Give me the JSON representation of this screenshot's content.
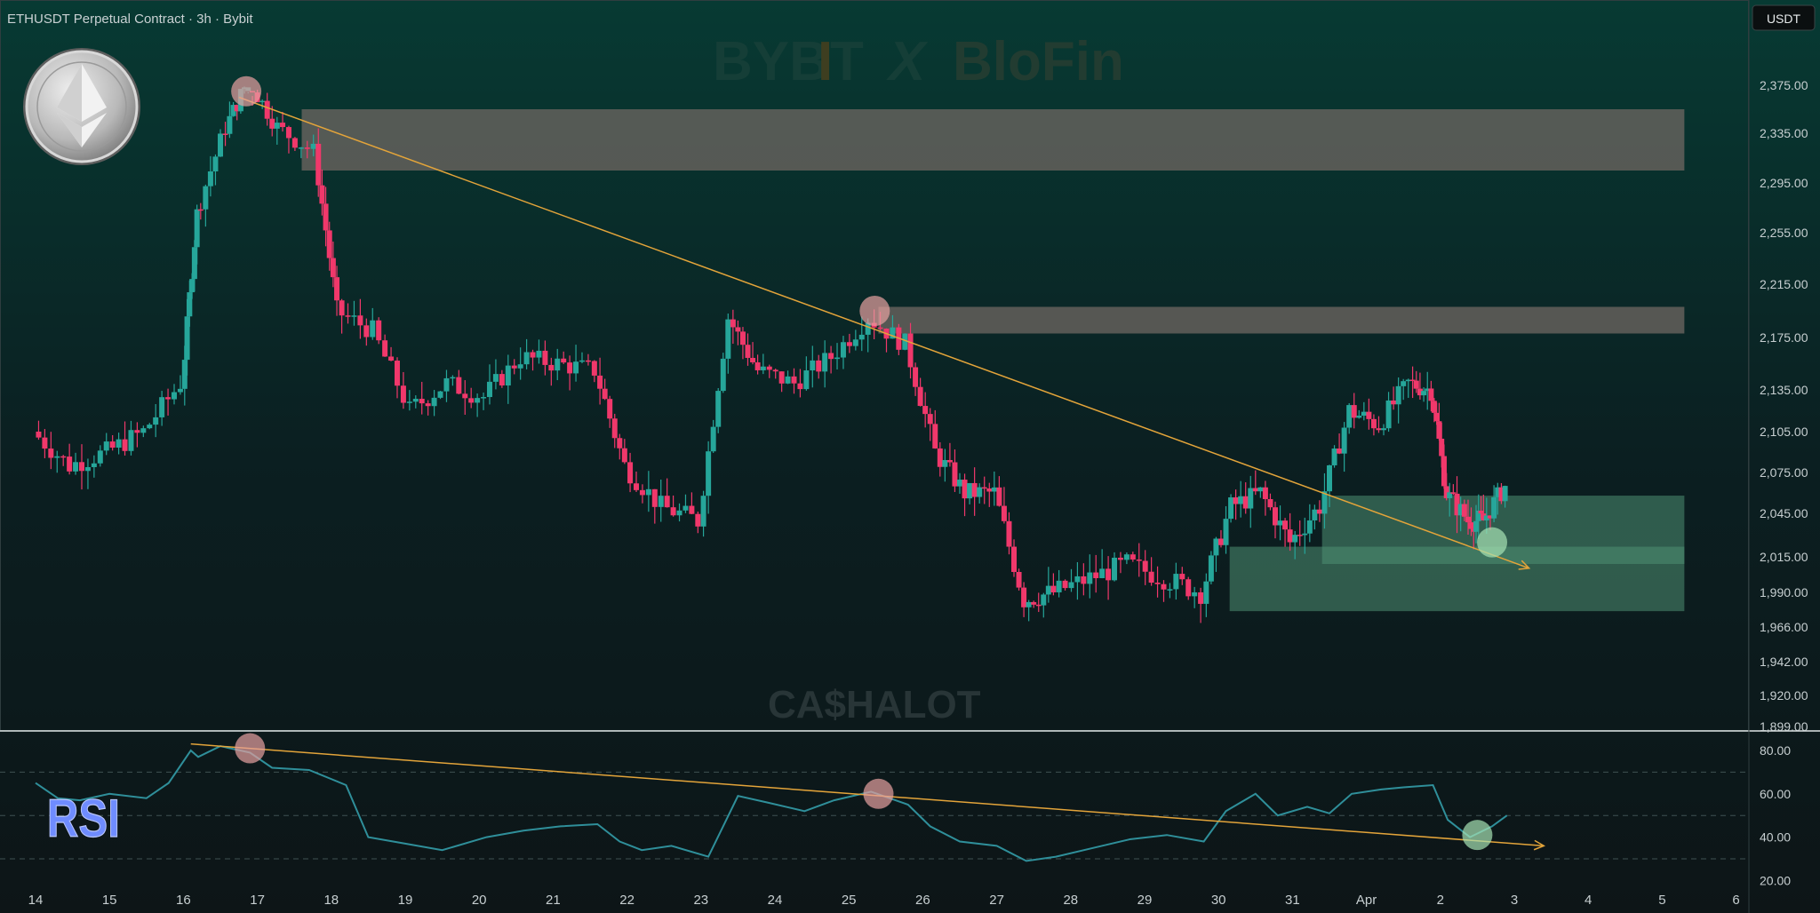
{
  "header": {
    "symbol_text": "ETHUSDT Perpetual Contract · 3h · Bybit"
  },
  "currency_button": "USDT",
  "watermarks": {
    "top_left": "BYB",
    "top_i": "I",
    "top_t": "T",
    "top_x": "X",
    "top_right": "BloFin",
    "bottom": "CA$HALOT"
  },
  "rsi_label": "RSI",
  "colors": {
    "up": "#26a69a",
    "down": "#f0386b",
    "trendline": "#e3a43a",
    "zone_supply": "#6b6560",
    "zone_demand": "#4f8f73"
  },
  "icons": {
    "logo": "ethereum-coin-icon"
  },
  "chart_data": [
    {
      "type": "candlestick",
      "title": "ETHUSDT Perpetual Contract · 3h · Bybit",
      "y_tick_labels": [
        "2,375.00",
        "2,335.00",
        "2,295.00",
        "2,255.00",
        "2,215.00",
        "2,175.00",
        "2,135.00",
        "2,105.00",
        "2,075.00",
        "2,045.00",
        "2,015.00",
        "1,990.00",
        "1,966.00",
        "1,942.00",
        "1,920.00",
        "1,899.00"
      ],
      "x_tick_labels": [
        "14",
        "15",
        "16",
        "17",
        "18",
        "19",
        "20",
        "21",
        "22",
        "23",
        "24",
        "25",
        "26",
        "27",
        "28",
        "29",
        "30",
        "31",
        "Apr",
        "2",
        "3",
        "4",
        "5",
        "6"
      ],
      "ylim": [
        1899,
        2400
      ],
      "price_points": [
        {
          "day": 14.0,
          "close": 2105
        },
        {
          "day": 14.5,
          "close": 2080
        },
        {
          "day": 15.0,
          "close": 2090
        },
        {
          "day": 15.5,
          "close": 2105
        },
        {
          "day": 16.0,
          "close": 2140
        },
        {
          "day": 16.2,
          "close": 2270
        },
        {
          "day": 16.6,
          "close": 2340
        },
        {
          "day": 16.9,
          "close": 2380
        },
        {
          "day": 17.3,
          "close": 2340
        },
        {
          "day": 17.8,
          "close": 2320
        },
        {
          "day": 18.1,
          "close": 2195
        },
        {
          "day": 18.6,
          "close": 2180
        },
        {
          "day": 19.1,
          "close": 2120
        },
        {
          "day": 19.6,
          "close": 2140
        },
        {
          "day": 20.1,
          "close": 2130
        },
        {
          "day": 20.6,
          "close": 2160
        },
        {
          "day": 21.1,
          "close": 2155
        },
        {
          "day": 21.6,
          "close": 2150
        },
        {
          "day": 22.0,
          "close": 2080
        },
        {
          "day": 22.5,
          "close": 2050
        },
        {
          "day": 23.0,
          "close": 2040
        },
        {
          "day": 23.4,
          "close": 2190
        },
        {
          "day": 23.8,
          "close": 2150
        },
        {
          "day": 24.3,
          "close": 2140
        },
        {
          "day": 24.8,
          "close": 2160
        },
        {
          "day": 25.3,
          "close": 2190
        },
        {
          "day": 25.8,
          "close": 2170
        },
        {
          "day": 26.2,
          "close": 2090
        },
        {
          "day": 26.6,
          "close": 2060
        },
        {
          "day": 27.0,
          "close": 2060
        },
        {
          "day": 27.4,
          "close": 1985
        },
        {
          "day": 27.8,
          "close": 1990
        },
        {
          "day": 28.3,
          "close": 2000
        },
        {
          "day": 28.8,
          "close": 2010
        },
        {
          "day": 29.3,
          "close": 2000
        },
        {
          "day": 29.8,
          "close": 1990
        },
        {
          "day": 30.2,
          "close": 2050
        },
        {
          "day": 30.6,
          "close": 2060
        },
        {
          "day": 31.0,
          "close": 2025
        },
        {
          "day": 31.4,
          "close": 2050
        },
        {
          "day": 31.8,
          "close": 2120
        },
        {
          "day": 32.2,
          "close": 2110
        },
        {
          "day": 32.6,
          "close": 2140
        },
        {
          "day": 32.9,
          "close": 2135
        },
        {
          "day": 33.1,
          "close": 2060
        },
        {
          "day": 33.4,
          "close": 2040
        },
        {
          "day": 33.6,
          "close": 2040
        },
        {
          "day": 33.9,
          "close": 2065
        }
      ],
      "zones": [
        {
          "kind": "supply",
          "from_day": 17.6,
          "to_day": 36.3,
          "price_low": 2305,
          "price_high": 2355
        },
        {
          "kind": "supply",
          "from_day": 25.4,
          "to_day": 36.3,
          "price_low": 2178,
          "price_high": 2198
        },
        {
          "kind": "demand",
          "from_day": 31.4,
          "to_day": 36.3,
          "price_low": 2010,
          "price_high": 2058
        },
        {
          "kind": "demand",
          "from_day": 30.15,
          "to_day": 36.3,
          "price_low": 1977,
          "price_high": 2022
        }
      ],
      "trendline": {
        "from": {
          "day": 16.75,
          "price": 2385
        },
        "to": {
          "day": 34.2,
          "price": 2007
        }
      },
      "markers": [
        {
          "day": 16.85,
          "price": 2380,
          "kind": "high"
        },
        {
          "day": 25.35,
          "price": 2195,
          "kind": "high"
        },
        {
          "day": 33.7,
          "price": 2025,
          "kind": "low"
        }
      ]
    },
    {
      "type": "line",
      "title": "RSI",
      "y_tick_labels": [
        "80.00",
        "60.00",
        "40.00",
        "20.00"
      ],
      "ylim": [
        18,
        85
      ],
      "guide_levels": [
        70,
        50,
        30
      ],
      "series": [
        {
          "points": [
            {
              "day": 14.0,
              "value": 65
            },
            {
              "day": 14.3,
              "value": 58
            },
            {
              "day": 14.6,
              "value": 57
            },
            {
              "day": 15.0,
              "value": 60
            },
            {
              "day": 15.5,
              "value": 58
            },
            {
              "day": 15.8,
              "value": 65
            },
            {
              "day": 16.1,
              "value": 80
            },
            {
              "day": 16.2,
              "value": 77
            },
            {
              "day": 16.5,
              "value": 82
            },
            {
              "day": 16.9,
              "value": 79
            },
            {
              "day": 17.2,
              "value": 72
            },
            {
              "day": 17.7,
              "value": 71
            },
            {
              "day": 18.2,
              "value": 64
            },
            {
              "day": 18.5,
              "value": 40
            },
            {
              "day": 19.0,
              "value": 37
            },
            {
              "day": 19.5,
              "value": 34
            },
            {
              "day": 20.1,
              "value": 40
            },
            {
              "day": 20.6,
              "value": 43
            },
            {
              "day": 21.1,
              "value": 45
            },
            {
              "day": 21.6,
              "value": 46
            },
            {
              "day": 21.9,
              "value": 38
            },
            {
              "day": 22.2,
              "value": 34
            },
            {
              "day": 22.6,
              "value": 36
            },
            {
              "day": 23.1,
              "value": 31
            },
            {
              "day": 23.5,
              "value": 59
            },
            {
              "day": 23.9,
              "value": 56
            },
            {
              "day": 24.4,
              "value": 52
            },
            {
              "day": 24.8,
              "value": 57
            },
            {
              "day": 25.3,
              "value": 61
            },
            {
              "day": 25.8,
              "value": 55
            },
            {
              "day": 26.1,
              "value": 45
            },
            {
              "day": 26.5,
              "value": 38
            },
            {
              "day": 27.0,
              "value": 36
            },
            {
              "day": 27.4,
              "value": 29
            },
            {
              "day": 27.8,
              "value": 31
            },
            {
              "day": 28.3,
              "value": 35
            },
            {
              "day": 28.8,
              "value": 39
            },
            {
              "day": 29.3,
              "value": 41
            },
            {
              "day": 29.8,
              "value": 38
            },
            {
              "day": 30.1,
              "value": 52
            },
            {
              "day": 30.5,
              "value": 60
            },
            {
              "day": 30.8,
              "value": 50
            },
            {
              "day": 31.2,
              "value": 54
            },
            {
              "day": 31.5,
              "value": 51
            },
            {
              "day": 31.8,
              "value": 60
            },
            {
              "day": 32.2,
              "value": 62
            },
            {
              "day": 32.5,
              "value": 63
            },
            {
              "day": 32.9,
              "value": 64
            },
            {
              "day": 33.1,
              "value": 48
            },
            {
              "day": 33.4,
              "value": 40
            },
            {
              "day": 33.7,
              "value": 45
            },
            {
              "day": 33.9,
              "value": 50
            }
          ]
        }
      ],
      "trendline": {
        "from": {
          "day": 16.1,
          "value": 83
        },
        "to": {
          "day": 34.4,
          "value": 36
        }
      },
      "markers": [
        {
          "day": 16.9,
          "value": 81,
          "kind": "high"
        },
        {
          "day": 25.4,
          "value": 60,
          "kind": "high"
        },
        {
          "day": 33.5,
          "value": 41,
          "kind": "low"
        }
      ]
    }
  ]
}
